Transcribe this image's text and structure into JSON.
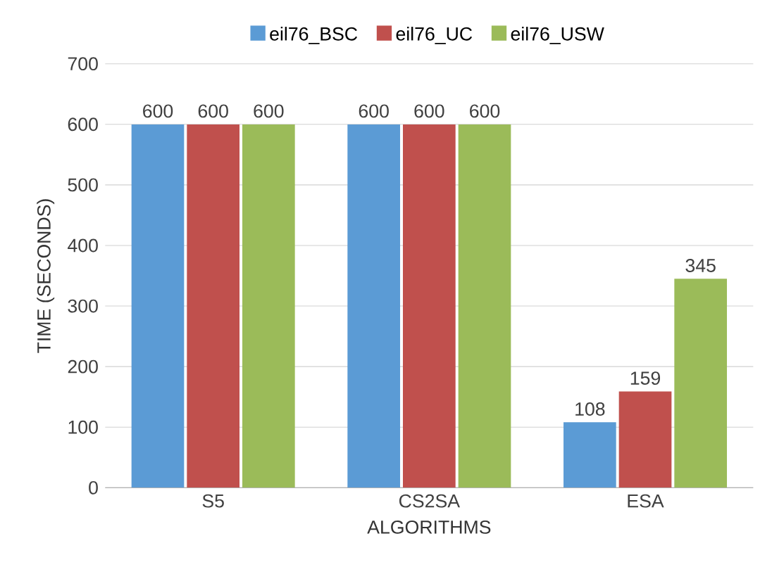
{
  "chart_data": {
    "type": "bar",
    "xlabel": "ALGORITHMS",
    "ylabel": "TIME (SECONDS)",
    "categories": [
      "S5",
      "CS2SA",
      "ESA"
    ],
    "series": [
      {
        "name": "eil76_BSC",
        "color": "#5b9bd5",
        "values": [
          600,
          600,
          108
        ]
      },
      {
        "name": "eil76_UC",
        "color": "#c0504d",
        "values": [
          600,
          600,
          159
        ]
      },
      {
        "name": "eil76_USW",
        "color": "#9bbb59",
        "values": [
          600,
          600,
          345
        ]
      }
    ],
    "ylim": [
      0,
      700
    ],
    "yticks": [
      0,
      100,
      200,
      300,
      400,
      500,
      600,
      700
    ],
    "grid": "y",
    "legend": "top",
    "data_labels": true
  }
}
